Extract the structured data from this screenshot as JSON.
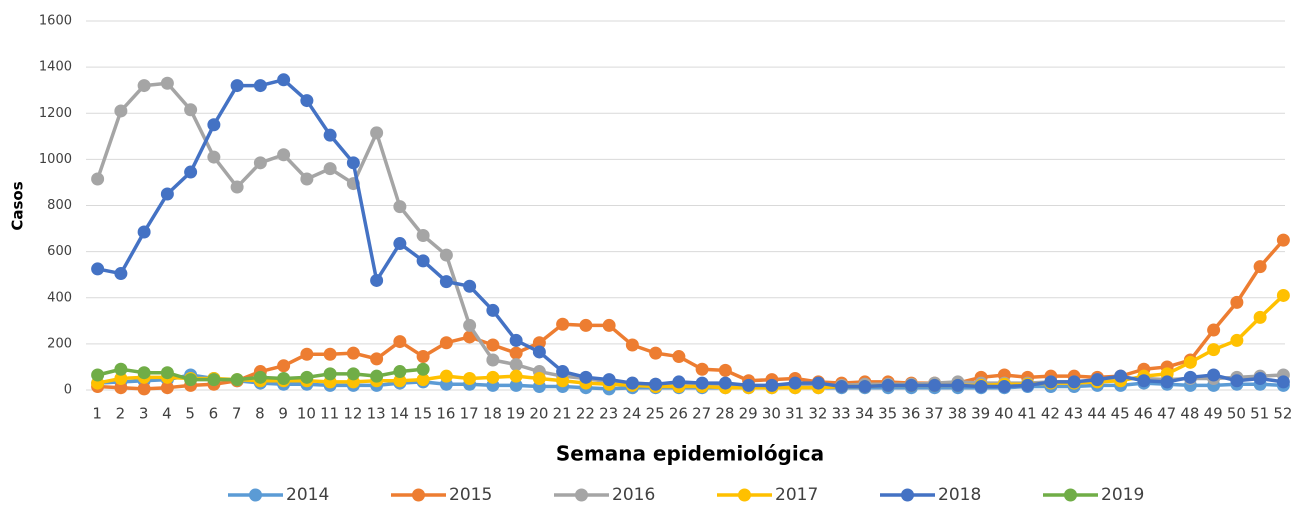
{
  "chart_data": {
    "type": "line",
    "x_label": "Semana epidemiológica",
    "y_label": "Casos",
    "categories": [
      "1",
      "2",
      "3",
      "4",
      "5",
      "6",
      "7",
      "8",
      "9",
      "10",
      "11",
      "12",
      "13",
      "14",
      "15",
      "16",
      "17",
      "18",
      "19",
      "20",
      "21",
      "22",
      "23",
      "24",
      "25",
      "26",
      "27",
      "28",
      "29",
      "30",
      "31",
      "32",
      "33",
      "34",
      "35",
      "36",
      "37",
      "38",
      "39",
      "40",
      "41",
      "42",
      "43",
      "44",
      "45",
      "46",
      "47",
      "48",
      "49",
      "50",
      "51",
      "52"
    ],
    "ylim": [
      0,
      1600
    ],
    "yticks": [
      0,
      200,
      400,
      600,
      800,
      1000,
      1200,
      1400,
      1600
    ],
    "grid": true,
    "legend": "bottom",
    "series": [
      {
        "name": "2014",
        "color": "#5b9bd5",
        "values": [
          30,
          35,
          40,
          45,
          65,
          50,
          40,
          30,
          25,
          25,
          20,
          20,
          20,
          30,
          35,
          25,
          25,
          20,
          20,
          15,
          15,
          10,
          5,
          10,
          10,
          10,
          10,
          10,
          10,
          10,
          10,
          10,
          10,
          10,
          10,
          10,
          10,
          10,
          10,
          10,
          15,
          15,
          15,
          20,
          20,
          30,
          25,
          20,
          20,
          25,
          25,
          20
        ]
      },
      {
        "name": "2015",
        "color": "#ed7d31",
        "values": [
          15,
          10,
          5,
          10,
          20,
          25,
          40,
          80,
          105,
          155,
          155,
          160,
          135,
          210,
          145,
          205,
          230,
          195,
          160,
          205,
          285,
          280,
          280,
          195,
          160,
          145,
          90,
          85,
          40,
          45,
          50,
          35,
          30,
          35,
          35,
          30,
          30,
          30,
          55,
          65,
          55,
          60,
          60,
          55,
          60,
          90,
          100,
          130,
          260,
          380,
          535,
          650
        ]
      },
      {
        "name": "2016",
        "color": "#a5a5a5",
        "values": [
          915,
          1210,
          1320,
          1330,
          1215,
          1010,
          880,
          985,
          1020,
          915,
          960,
          895,
          1115,
          795,
          670,
          585,
          280,
          130,
          110,
          80,
          60,
          50,
          35,
          30,
          25,
          20,
          20,
          15,
          15,
          15,
          20,
          20,
          20,
          25,
          25,
          25,
          30,
          35,
          30,
          30,
          30,
          35,
          35,
          40,
          50,
          50,
          45,
          50,
          50,
          55,
          60,
          65
        ]
      },
      {
        "name": "2017",
        "color": "#ffc000",
        "values": [
          30,
          50,
          55,
          55,
          50,
          50,
          45,
          40,
          40,
          40,
          35,
          35,
          40,
          40,
          45,
          60,
          50,
          55,
          60,
          50,
          40,
          30,
          25,
          20,
          15,
          15,
          15,
          10,
          10,
          10,
          10,
          10,
          15,
          15,
          20,
          20,
          20,
          20,
          20,
          25,
          25,
          30,
          30,
          35,
          40,
          60,
          70,
          120,
          175,
          215,
          315,
          410
        ]
      },
      {
        "name": "2018",
        "color": "#4472c4",
        "values": [
          525,
          505,
          685,
          850,
          945,
          1150,
          1320,
          1320,
          1345,
          1255,
          1105,
          985,
          475,
          635,
          560,
          470,
          450,
          345,
          215,
          165,
          80,
          55,
          45,
          30,
          25,
          35,
          30,
          30,
          20,
          20,
          30,
          30,
          15,
          15,
          20,
          20,
          20,
          20,
          15,
          15,
          20,
          35,
          35,
          45,
          60,
          40,
          35,
          55,
          65,
          40,
          50,
          35
        ]
      },
      {
        "name": "2019",
        "color": "#70ad47",
        "values": [
          65,
          90,
          75,
          75,
          45,
          45,
          45,
          55,
          50,
          55,
          70,
          70,
          60,
          80,
          90,
          null,
          null,
          null,
          null,
          null,
          null,
          null,
          null,
          null,
          null,
          null,
          null,
          null,
          null,
          null,
          null,
          null,
          null,
          null,
          null,
          null,
          null,
          null,
          null,
          null,
          null,
          null,
          null,
          null,
          null,
          null,
          null,
          null,
          null,
          null,
          null,
          null
        ]
      }
    ]
  }
}
